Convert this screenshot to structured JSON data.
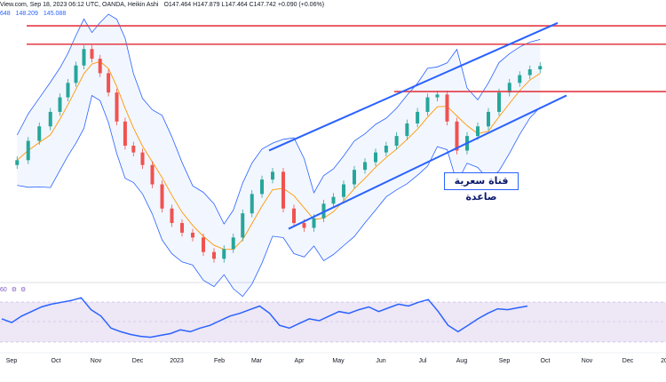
{
  "header": {
    "line1": "View.com, Sep 18, 2023 06:12 UTC",
    "line1b": ", OANDA, Heikin Ashi",
    "ohlc": "O147.464 H147.879 L147.464 C147.742 +0.090 (+0.06%)",
    "bb_values": [
      "648",
      "148.209",
      "145.088"
    ],
    "rsi_label": "60"
  },
  "annotation": {
    "text": "قناة سعرية صاعدة"
  },
  "colors": {
    "bull": "#26a69a",
    "bear": "#ef5350",
    "channel": "#2962ff",
    "resistance": "#e53946",
    "bb": "#2962ff",
    "ma": "#ff9800",
    "rsi": "#2962ff",
    "rsi_band": "#ede7f6"
  },
  "chart_data": [
    {
      "type": "candlestick",
      "title": "",
      "x_ticks": [
        "Sep",
        "Oct",
        "Nov",
        "Dec",
        "2023",
        "Feb",
        "Mar",
        "Apr",
        "May",
        "Jun",
        "Jul",
        "Aug",
        "Sep",
        "Oct",
        "Nov",
        "Dec",
        "20"
      ],
      "ylim": [
        127,
        152
      ],
      "indicators": [
        "Bollinger Bands",
        "Moving Average"
      ],
      "key_prices": {
        "last_close": 147.742,
        "bb_upper": 148.209,
        "bb_lower": 145.088
      },
      "horizontal_lines": [
        151.9,
        150.0,
        145.1
      ],
      "channel": {
        "upper": [
          [
            "Mar",
            139.0
          ],
          [
            "Oct",
            152.2
          ]
        ],
        "lower": [
          [
            "Mar",
            130.9
          ],
          [
            "Oct",
            144.7
          ]
        ]
      },
      "close_path": [
        [
          "Sep",
          138.0
        ],
        [
          "Sep",
          140.0
        ],
        [
          "Sep",
          141.5
        ],
        [
          "Sep",
          143.0
        ],
        [
          "Oct",
          144.5
        ],
        [
          "Oct",
          146.0
        ],
        [
          "Oct",
          147.8
        ],
        [
          "Oct",
          149.5
        ],
        [
          "Oct",
          148.5
        ],
        [
          "Nov",
          147.0
        ],
        [
          "Nov",
          145.0
        ],
        [
          "Nov",
          142.0
        ],
        [
          "Nov",
          139.5
        ],
        [
          "Nov",
          138.8
        ],
        [
          "Dec",
          137.5
        ],
        [
          "Dec",
          135.5
        ],
        [
          "Dec",
          133.0
        ],
        [
          "Dec",
          131.5
        ],
        [
          "2023",
          130.5
        ],
        [
          "2023",
          130.0
        ],
        [
          "2023",
          128.5
        ],
        [
          "2023",
          127.8
        ],
        [
          "Feb",
          128.8
        ],
        [
          "Feb",
          130.0
        ],
        [
          "Feb",
          132.5
        ],
        [
          "Feb",
          134.5
        ],
        [
          "Mar",
          136.0
        ],
        [
          "Mar",
          136.8
        ],
        [
          "Mar",
          133.0
        ],
        [
          "Mar",
          131.5
        ],
        [
          "Apr",
          131.0
        ],
        [
          "Apr",
          132.0
        ],
        [
          "Apr",
          133.5
        ],
        [
          "Apr",
          134.2
        ],
        [
          "May",
          135.5
        ],
        [
          "May",
          137.0
        ],
        [
          "May",
          137.8
        ],
        [
          "May",
          138.8
        ],
        [
          "Jun",
          139.5
        ],
        [
          "Jun",
          140.5
        ],
        [
          "Jun",
          141.8
        ],
        [
          "Jun",
          143.0
        ],
        [
          "Jul",
          144.5
        ],
        [
          "Jul",
          144.8
        ],
        [
          "Jul",
          142.0
        ],
        [
          "Jul",
          139.0
        ],
        [
          "Aug",
          140.5
        ],
        [
          "Aug",
          141.5
        ],
        [
          "Aug",
          143.0
        ],
        [
          "Aug",
          145.0
        ],
        [
          "Sep",
          146.0
        ],
        [
          "Sep",
          146.8
        ],
        [
          "Sep",
          147.4
        ],
        [
          "Sep",
          147.742
        ]
      ]
    },
    {
      "type": "line",
      "title": "",
      "ylim": [
        20,
        80
      ],
      "band": [
        30,
        70
      ],
      "values": [
        52,
        48,
        55,
        60,
        65,
        68,
        70,
        72,
        75,
        62,
        55,
        42,
        38,
        35,
        33,
        32,
        34,
        36,
        40,
        38,
        42,
        45,
        50,
        55,
        58,
        62,
        66,
        58,
        45,
        42,
        47,
        52,
        50,
        55,
        60,
        58,
        62,
        65,
        60,
        64,
        68,
        66,
        70,
        73,
        60,
        45,
        38,
        45,
        52,
        58,
        63,
        62,
        64,
        66
      ]
    }
  ]
}
